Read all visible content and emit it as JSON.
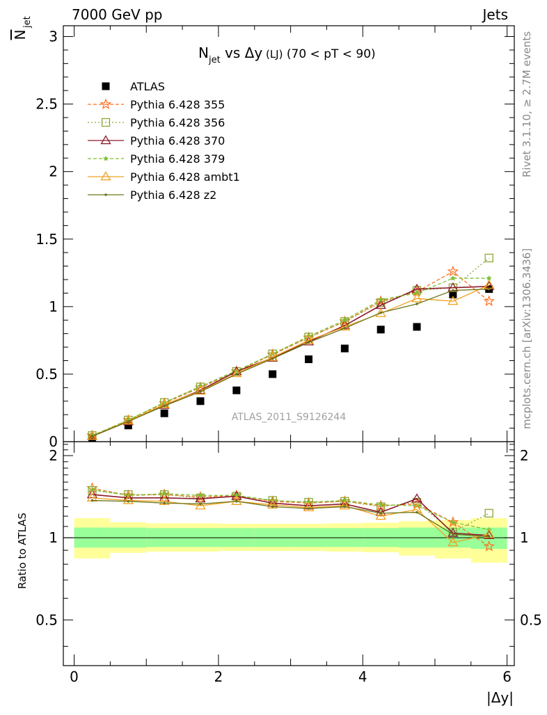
{
  "header": {
    "left": "7000 GeV pp",
    "right": "Jets"
  },
  "title": {
    "n": "N",
    "n_sub": "jet",
    "vs": " vs ",
    "dy": "Δy",
    "lj": " (LJ)",
    "range": " (70 < pT <  90)"
  },
  "side_labels": {
    "rivet": "Rivet 3.1.10, ≥ 2.7M events",
    "mcplots": "mcplots.cern.ch [arXiv:1306.3436]"
  },
  "watermark": "ATLAS_2011_S9126244",
  "chart_data": [
    {
      "type": "scatter",
      "panel": "main",
      "ylabel": "N",
      "ylabel_sub": "jet",
      "xlim": [
        -0.15,
        6.1
      ],
      "ylim": [
        0,
        3.08
      ],
      "y_ticks": [
        0,
        0.5,
        1,
        1.5,
        2,
        2.5,
        3
      ],
      "y_tick_labels": [
        "0",
        "0.5",
        "1",
        "1.5",
        "2",
        "2.5",
        "3"
      ],
      "x": [
        0.25,
        0.75,
        1.25,
        1.75,
        2.25,
        2.75,
        3.25,
        3.75,
        4.25,
        4.75,
        5.25,
        5.75
      ],
      "series": [
        {
          "name": "ATLAS",
          "color": "#000000",
          "marker": "square",
          "line": "none",
          "values": [
            0.03,
            0.12,
            0.21,
            0.3,
            0.38,
            0.5,
            0.61,
            0.69,
            0.83,
            0.85,
            1.09,
            1.13
          ]
        },
        {
          "name": "Pythia 6.428 355",
          "color": "#ff6f1f",
          "marker": "star-open",
          "line": "dashed",
          "values": [
            0.045,
            0.16,
            0.285,
            0.4,
            0.52,
            0.645,
            0.77,
            0.89,
            1.04,
            1.11,
            1.26,
            1.04
          ]
        },
        {
          "name": "Pythia 6.428 356",
          "color": "#8aa832",
          "marker": "square-open",
          "line": "dotted",
          "values": [
            0.045,
            0.16,
            0.29,
            0.405,
            0.52,
            0.65,
            0.775,
            0.89,
            1.03,
            1.12,
            1.14,
            1.36
          ]
        },
        {
          "name": "Pythia 6.428 370",
          "color": "#8b1a2b",
          "marker": "triangle-open",
          "line": "solid",
          "values": [
            0.04,
            0.15,
            0.27,
            0.38,
            0.52,
            0.62,
            0.74,
            0.86,
            1.01,
            1.13,
            1.14,
            1.15
          ]
        },
        {
          "name": "Pythia 6.428 379",
          "color": "#7cbf32",
          "marker": "star-filled",
          "line": "dashed",
          "values": [
            0.045,
            0.16,
            0.29,
            0.41,
            0.525,
            0.65,
            0.78,
            0.9,
            1.05,
            1.1,
            1.21,
            1.21
          ]
        },
        {
          "name": "Pythia 6.428 ambt1",
          "color": "#f0a020",
          "marker": "triangle-open",
          "line": "solid",
          "values": [
            0.04,
            0.155,
            0.275,
            0.375,
            0.505,
            0.625,
            0.75,
            0.85,
            0.95,
            1.06,
            1.04,
            1.16
          ]
        },
        {
          "name": "Pythia 6.428 z2",
          "color": "#6b7418",
          "marker": "dot",
          "line": "solid",
          "values": [
            0.04,
            0.15,
            0.265,
            0.37,
            0.5,
            0.615,
            0.735,
            0.84,
            0.955,
            1.02,
            1.12,
            1.13
          ]
        }
      ]
    },
    {
      "type": "scatter",
      "panel": "ratio",
      "ylabel": "Ratio to ATLAS",
      "xlabel": "|Δy|",
      "xlim": [
        -0.15,
        6.1
      ],
      "ylim": [
        0.34,
        2.25
      ],
      "x_ticks": [
        0,
        2,
        4,
        6
      ],
      "x_tick_labels": [
        "0",
        "2",
        "4",
        "6"
      ],
      "y_ticks": [
        0.5,
        1,
        2
      ],
      "y_tick_labels": [
        "0.5",
        "1",
        "2"
      ],
      "bands": {
        "green": [
          [
            0.92,
            1.09
          ],
          [
            0.92,
            1.09
          ],
          [
            0.925,
            1.085
          ],
          [
            0.925,
            1.085
          ],
          [
            0.925,
            1.085
          ],
          [
            0.925,
            1.085
          ],
          [
            0.925,
            1.085
          ],
          [
            0.925,
            1.085
          ],
          [
            0.925,
            1.085
          ],
          [
            0.92,
            1.09
          ],
          [
            0.92,
            1.09
          ],
          [
            0.91,
            1.09
          ]
        ],
        "yellow": [
          [
            0.84,
            1.18
          ],
          [
            0.88,
            1.14
          ],
          [
            0.89,
            1.13
          ],
          [
            0.89,
            1.13
          ],
          [
            0.895,
            1.125
          ],
          [
            0.895,
            1.125
          ],
          [
            0.895,
            1.125
          ],
          [
            0.89,
            1.13
          ],
          [
            0.885,
            1.135
          ],
          [
            0.86,
            1.15
          ],
          [
            0.84,
            1.16
          ],
          [
            0.81,
            1.18
          ]
        ]
      },
      "x": [
        0.25,
        0.75,
        1.25,
        1.75,
        2.25,
        2.75,
        3.25,
        3.75,
        4.25,
        4.75,
        5.25,
        5.75
      ],
      "series": [
        {
          "name": "Pythia 6.428 355",
          "color": "#ff6f1f",
          "marker": "star-open",
          "line": "dashed",
          "values": [
            1.52,
            1.43,
            1.44,
            1.41,
            1.43,
            1.36,
            1.34,
            1.36,
            1.31,
            1.33,
            1.14,
            0.93
          ]
        },
        {
          "name": "Pythia 6.428 356",
          "color": "#8aa832",
          "marker": "square-open",
          "line": "dotted",
          "values": [
            1.49,
            1.44,
            1.44,
            1.4,
            1.42,
            1.37,
            1.35,
            1.36,
            1.3,
            1.35,
            1.05,
            1.23
          ]
        },
        {
          "name": "Pythia 6.428 370",
          "color": "#8b1a2b",
          "marker": "triangle-open",
          "line": "solid",
          "values": [
            1.44,
            1.4,
            1.4,
            1.39,
            1.42,
            1.34,
            1.31,
            1.33,
            1.24,
            1.39,
            1.04,
            1.02
          ]
        },
        {
          "name": "Pythia 6.428 379",
          "color": "#7cbf32",
          "marker": "star-filled",
          "line": "dashed",
          "values": [
            1.5,
            1.43,
            1.45,
            1.43,
            1.43,
            1.37,
            1.35,
            1.37,
            1.32,
            1.31,
            1.14,
            1.07
          ]
        },
        {
          "name": "Pythia 6.428 ambt1",
          "color": "#f0a020",
          "marker": "triangle-open",
          "line": "solid",
          "values": [
            1.4,
            1.37,
            1.36,
            1.31,
            1.36,
            1.32,
            1.29,
            1.31,
            1.2,
            1.27,
            0.96,
            1.03
          ]
        },
        {
          "name": "Pythia 6.428 z2",
          "color": "#6b7418",
          "marker": "dot",
          "line": "solid",
          "values": [
            1.37,
            1.36,
            1.34,
            1.33,
            1.36,
            1.3,
            1.28,
            1.3,
            1.23,
            1.24,
            1.03,
            1.01
          ]
        }
      ]
    }
  ]
}
